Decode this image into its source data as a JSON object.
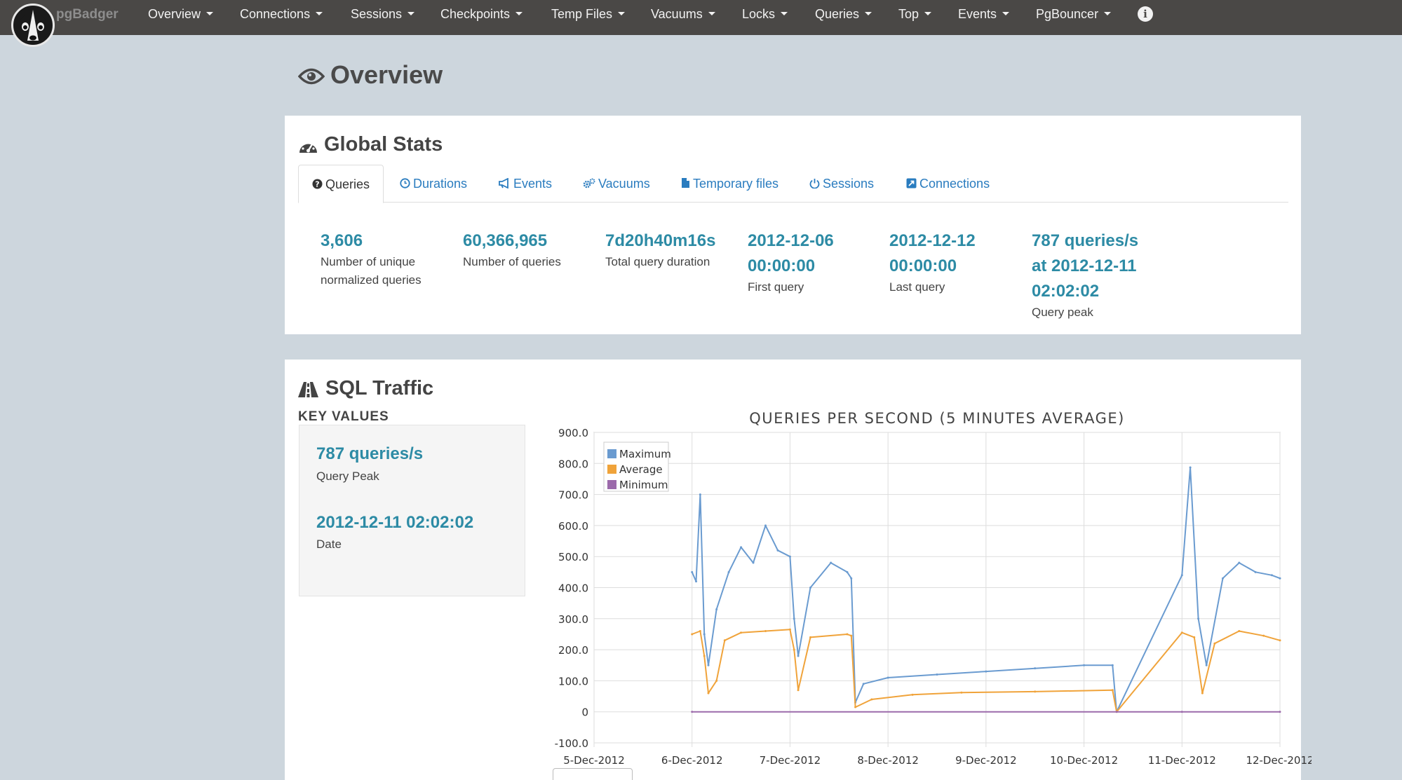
{
  "navbar": {
    "brand": "pgBadger",
    "items": [
      {
        "label": "Overview"
      },
      {
        "label": "Connections"
      },
      {
        "label": "Sessions"
      },
      {
        "label": "Checkpoints"
      },
      {
        "label": "Temp Files"
      },
      {
        "label": "Vacuums"
      },
      {
        "label": "Locks"
      },
      {
        "label": "Queries"
      },
      {
        "label": "Top"
      },
      {
        "label": "Events"
      },
      {
        "label": "PgBouncer"
      }
    ],
    "info_icon": "info-icon"
  },
  "page": {
    "title": "Overview",
    "title_icon": "eye-icon"
  },
  "global_stats": {
    "title": "Global Stats",
    "title_icon": "dashboard-icon",
    "tabs": [
      {
        "label": "Queries",
        "icon": "question-circle-icon",
        "active": true
      },
      {
        "label": "Durations",
        "icon": "clock-icon"
      },
      {
        "label": "Events",
        "icon": "bullhorn-icon"
      },
      {
        "label": "Vacuums",
        "icon": "gears-icon"
      },
      {
        "label": "Temporary files",
        "icon": "file-icon"
      },
      {
        "label": "Sessions",
        "icon": "power-icon"
      },
      {
        "label": "Connections",
        "icon": "external-link-icon"
      }
    ],
    "stats": [
      {
        "value_lines": [
          "3,606"
        ],
        "label_lines": [
          "Number of unique",
          "normalized queries"
        ]
      },
      {
        "value_lines": [
          "60,366,965"
        ],
        "label_lines": [
          "Number of queries"
        ]
      },
      {
        "value_lines": [
          "7d20h40m16s"
        ],
        "label_lines": [
          "Total query duration"
        ]
      },
      {
        "value_lines": [
          "2012-12-06",
          "00:00:00"
        ],
        "label_lines": [
          "First query"
        ]
      },
      {
        "value_lines": [
          "2012-12-12",
          "00:00:00"
        ],
        "label_lines": [
          "Last query"
        ]
      },
      {
        "value_lines": [
          "787 queries/s",
          "at 2012-12-11",
          "02:02:02"
        ],
        "label_lines": [
          "Query peak"
        ]
      }
    ]
  },
  "sql_traffic": {
    "title": "SQL Traffic",
    "title_icon": "road-icon",
    "key_values_heading": "KEY VALUES",
    "key_values": [
      {
        "value": "787 queries/s",
        "label": "Query Peak"
      },
      {
        "value": "2012-12-11 02:02:02",
        "label": "Date"
      }
    ]
  },
  "colors": {
    "navbar": "#4a4846",
    "accent_value": "#2d8ba5",
    "link": "#2a7cbf",
    "maximum": "#6a9bd0",
    "average": "#f0a33a",
    "minimum": "#9c6aab"
  },
  "chart_data": {
    "type": "line",
    "title": "QUERIES PER SECOND (5 MINUTES AVERAGE)",
    "xlabel": "",
    "ylabel": "",
    "ylim": [
      -100,
      900
    ],
    "y_ticks": [
      "900.0",
      "800.0",
      "700.0",
      "600.0",
      "500.0",
      "400.0",
      "300.0",
      "200.0",
      "100.0",
      "0",
      "-100.0"
    ],
    "x_ticks": [
      "5-Dec-2012",
      "6-Dec-2012",
      "7-Dec-2012",
      "8-Dec-2012",
      "9-Dec-2012",
      "10-Dec-2012",
      "11-Dec-2012",
      "12-Dec-2012"
    ],
    "grid": true,
    "legend_position": "top-left",
    "series": [
      {
        "name": "Maximum",
        "color": "#6a9bd0",
        "points": [
          [
            "6-Dec-2012 00:00",
            450
          ],
          [
            "6-Dec-2012 01:00",
            420
          ],
          [
            "6-Dec-2012 02:00",
            700
          ],
          [
            "6-Dec-2012 03:00",
            250
          ],
          [
            "6-Dec-2012 04:00",
            150
          ],
          [
            "6-Dec-2012 06:00",
            330
          ],
          [
            "6-Dec-2012 09:00",
            450
          ],
          [
            "6-Dec-2012 12:00",
            530
          ],
          [
            "6-Dec-2012 15:00",
            480
          ],
          [
            "6-Dec-2012 18:00",
            600
          ],
          [
            "6-Dec-2012 21:00",
            520
          ],
          [
            "7-Dec-2012 00:00",
            500
          ],
          [
            "7-Dec-2012 01:00",
            300
          ],
          [
            "7-Dec-2012 02:00",
            180
          ],
          [
            "7-Dec-2012 05:00",
            400
          ],
          [
            "7-Dec-2012 10:00",
            480
          ],
          [
            "7-Dec-2012 14:00",
            450
          ],
          [
            "7-Dec-2012 15:00",
            430
          ],
          [
            "7-Dec-2012 16:00",
            30
          ],
          [
            "7-Dec-2012 18:00",
            90
          ],
          [
            "8-Dec-2012 00:00",
            110
          ],
          [
            "8-Dec-2012 12:00",
            120
          ],
          [
            "9-Dec-2012 00:00",
            130
          ],
          [
            "9-Dec-2012 12:00",
            140
          ],
          [
            "10-Dec-2012 00:00",
            150
          ],
          [
            "10-Dec-2012 07:00",
            150
          ],
          [
            "10-Dec-2012 08:00",
            0
          ],
          [
            "11-Dec-2012 00:00",
            440
          ],
          [
            "11-Dec-2012 02:02",
            787
          ],
          [
            "11-Dec-2012 04:00",
            300
          ],
          [
            "11-Dec-2012 06:00",
            150
          ],
          [
            "11-Dec-2012 10:00",
            430
          ],
          [
            "11-Dec-2012 14:00",
            480
          ],
          [
            "11-Dec-2012 18:00",
            450
          ],
          [
            "11-Dec-2012 22:00",
            440
          ],
          [
            "12-Dec-2012 00:00",
            430
          ]
        ]
      },
      {
        "name": "Average",
        "color": "#f0a33a",
        "points": [
          [
            "6-Dec-2012 00:00",
            250
          ],
          [
            "6-Dec-2012 02:00",
            260
          ],
          [
            "6-Dec-2012 03:00",
            180
          ],
          [
            "6-Dec-2012 04:00",
            60
          ],
          [
            "6-Dec-2012 06:00",
            100
          ],
          [
            "6-Dec-2012 08:00",
            230
          ],
          [
            "6-Dec-2012 12:00",
            255
          ],
          [
            "6-Dec-2012 18:00",
            260
          ],
          [
            "7-Dec-2012 00:00",
            265
          ],
          [
            "7-Dec-2012 01:00",
            200
          ],
          [
            "7-Dec-2012 02:00",
            70
          ],
          [
            "7-Dec-2012 05:00",
            240
          ],
          [
            "7-Dec-2012 14:00",
            250
          ],
          [
            "7-Dec-2012 15:00",
            245
          ],
          [
            "7-Dec-2012 16:00",
            15
          ],
          [
            "7-Dec-2012 20:00",
            40
          ],
          [
            "8-Dec-2012 06:00",
            55
          ],
          [
            "8-Dec-2012 18:00",
            62
          ],
          [
            "9-Dec-2012 12:00",
            65
          ],
          [
            "10-Dec-2012 07:00",
            70
          ],
          [
            "10-Dec-2012 08:00",
            0
          ],
          [
            "11-Dec-2012 00:00",
            255
          ],
          [
            "11-Dec-2012 03:00",
            240
          ],
          [
            "11-Dec-2012 05:00",
            60
          ],
          [
            "11-Dec-2012 08:00",
            220
          ],
          [
            "11-Dec-2012 14:00",
            260
          ],
          [
            "11-Dec-2012 20:00",
            245
          ],
          [
            "12-Dec-2012 00:00",
            230
          ]
        ]
      },
      {
        "name": "Minimum",
        "color": "#9c6aab",
        "points": [
          [
            "6-Dec-2012 00:00",
            0
          ],
          [
            "10-Dec-2012 08:00",
            0
          ],
          [
            "11-Dec-2012 00:00",
            0
          ],
          [
            "12-Dec-2012 00:00",
            0
          ]
        ]
      }
    ]
  }
}
